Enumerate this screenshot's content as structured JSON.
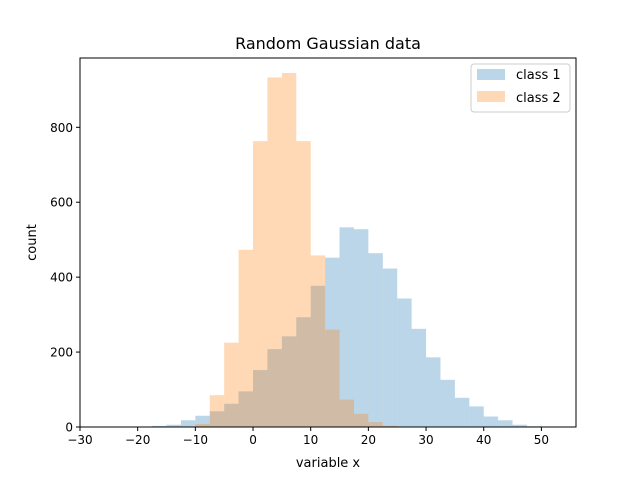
{
  "chart_data": {
    "type": "bar",
    "title": "Random Gaussian data",
    "xlabel": "variable x",
    "ylabel": "count",
    "xlim": [
      -30,
      56
    ],
    "ylim": [
      0,
      985
    ],
    "xticks": [
      -30,
      -20,
      -10,
      0,
      10,
      20,
      30,
      40,
      50
    ],
    "yticks": [
      0,
      200,
      400,
      600,
      800
    ],
    "grid": false,
    "legend_position": "top-right",
    "bin_width": 2.5,
    "series": [
      {
        "name": "class 1",
        "color": "#1f77b4",
        "opacity": 0.3,
        "bin_starts": [
          -20,
          -17.5,
          -15,
          -12.5,
          -10,
          -7.5,
          -5,
          -2.5,
          0,
          2.5,
          5,
          7.5,
          10,
          12.5,
          15,
          17.5,
          20,
          22.5,
          25,
          27.5,
          30,
          32.5,
          35,
          37.5,
          40,
          42.5,
          45,
          47.5,
          50
        ],
        "values": [
          1,
          3,
          6,
          18,
          30,
          42,
          62,
          95,
          152,
          208,
          242,
          293,
          377,
          452,
          533,
          528,
          464,
          423,
          343,
          262,
          186,
          126,
          78,
          55,
          28,
          18,
          6,
          2,
          1
        ]
      },
      {
        "name": "class 2",
        "color": "#ff7f0e",
        "opacity": 0.3,
        "bin_starts": [
          -10,
          -7.5,
          -5,
          -2.5,
          0,
          2.5,
          5,
          7.5,
          10,
          12.5,
          15,
          17.5,
          20,
          22.5
        ],
        "values": [
          8,
          85,
          225,
          473,
          763,
          933,
          945,
          763,
          458,
          260,
          73,
          35,
          13,
          3
        ]
      }
    ]
  }
}
